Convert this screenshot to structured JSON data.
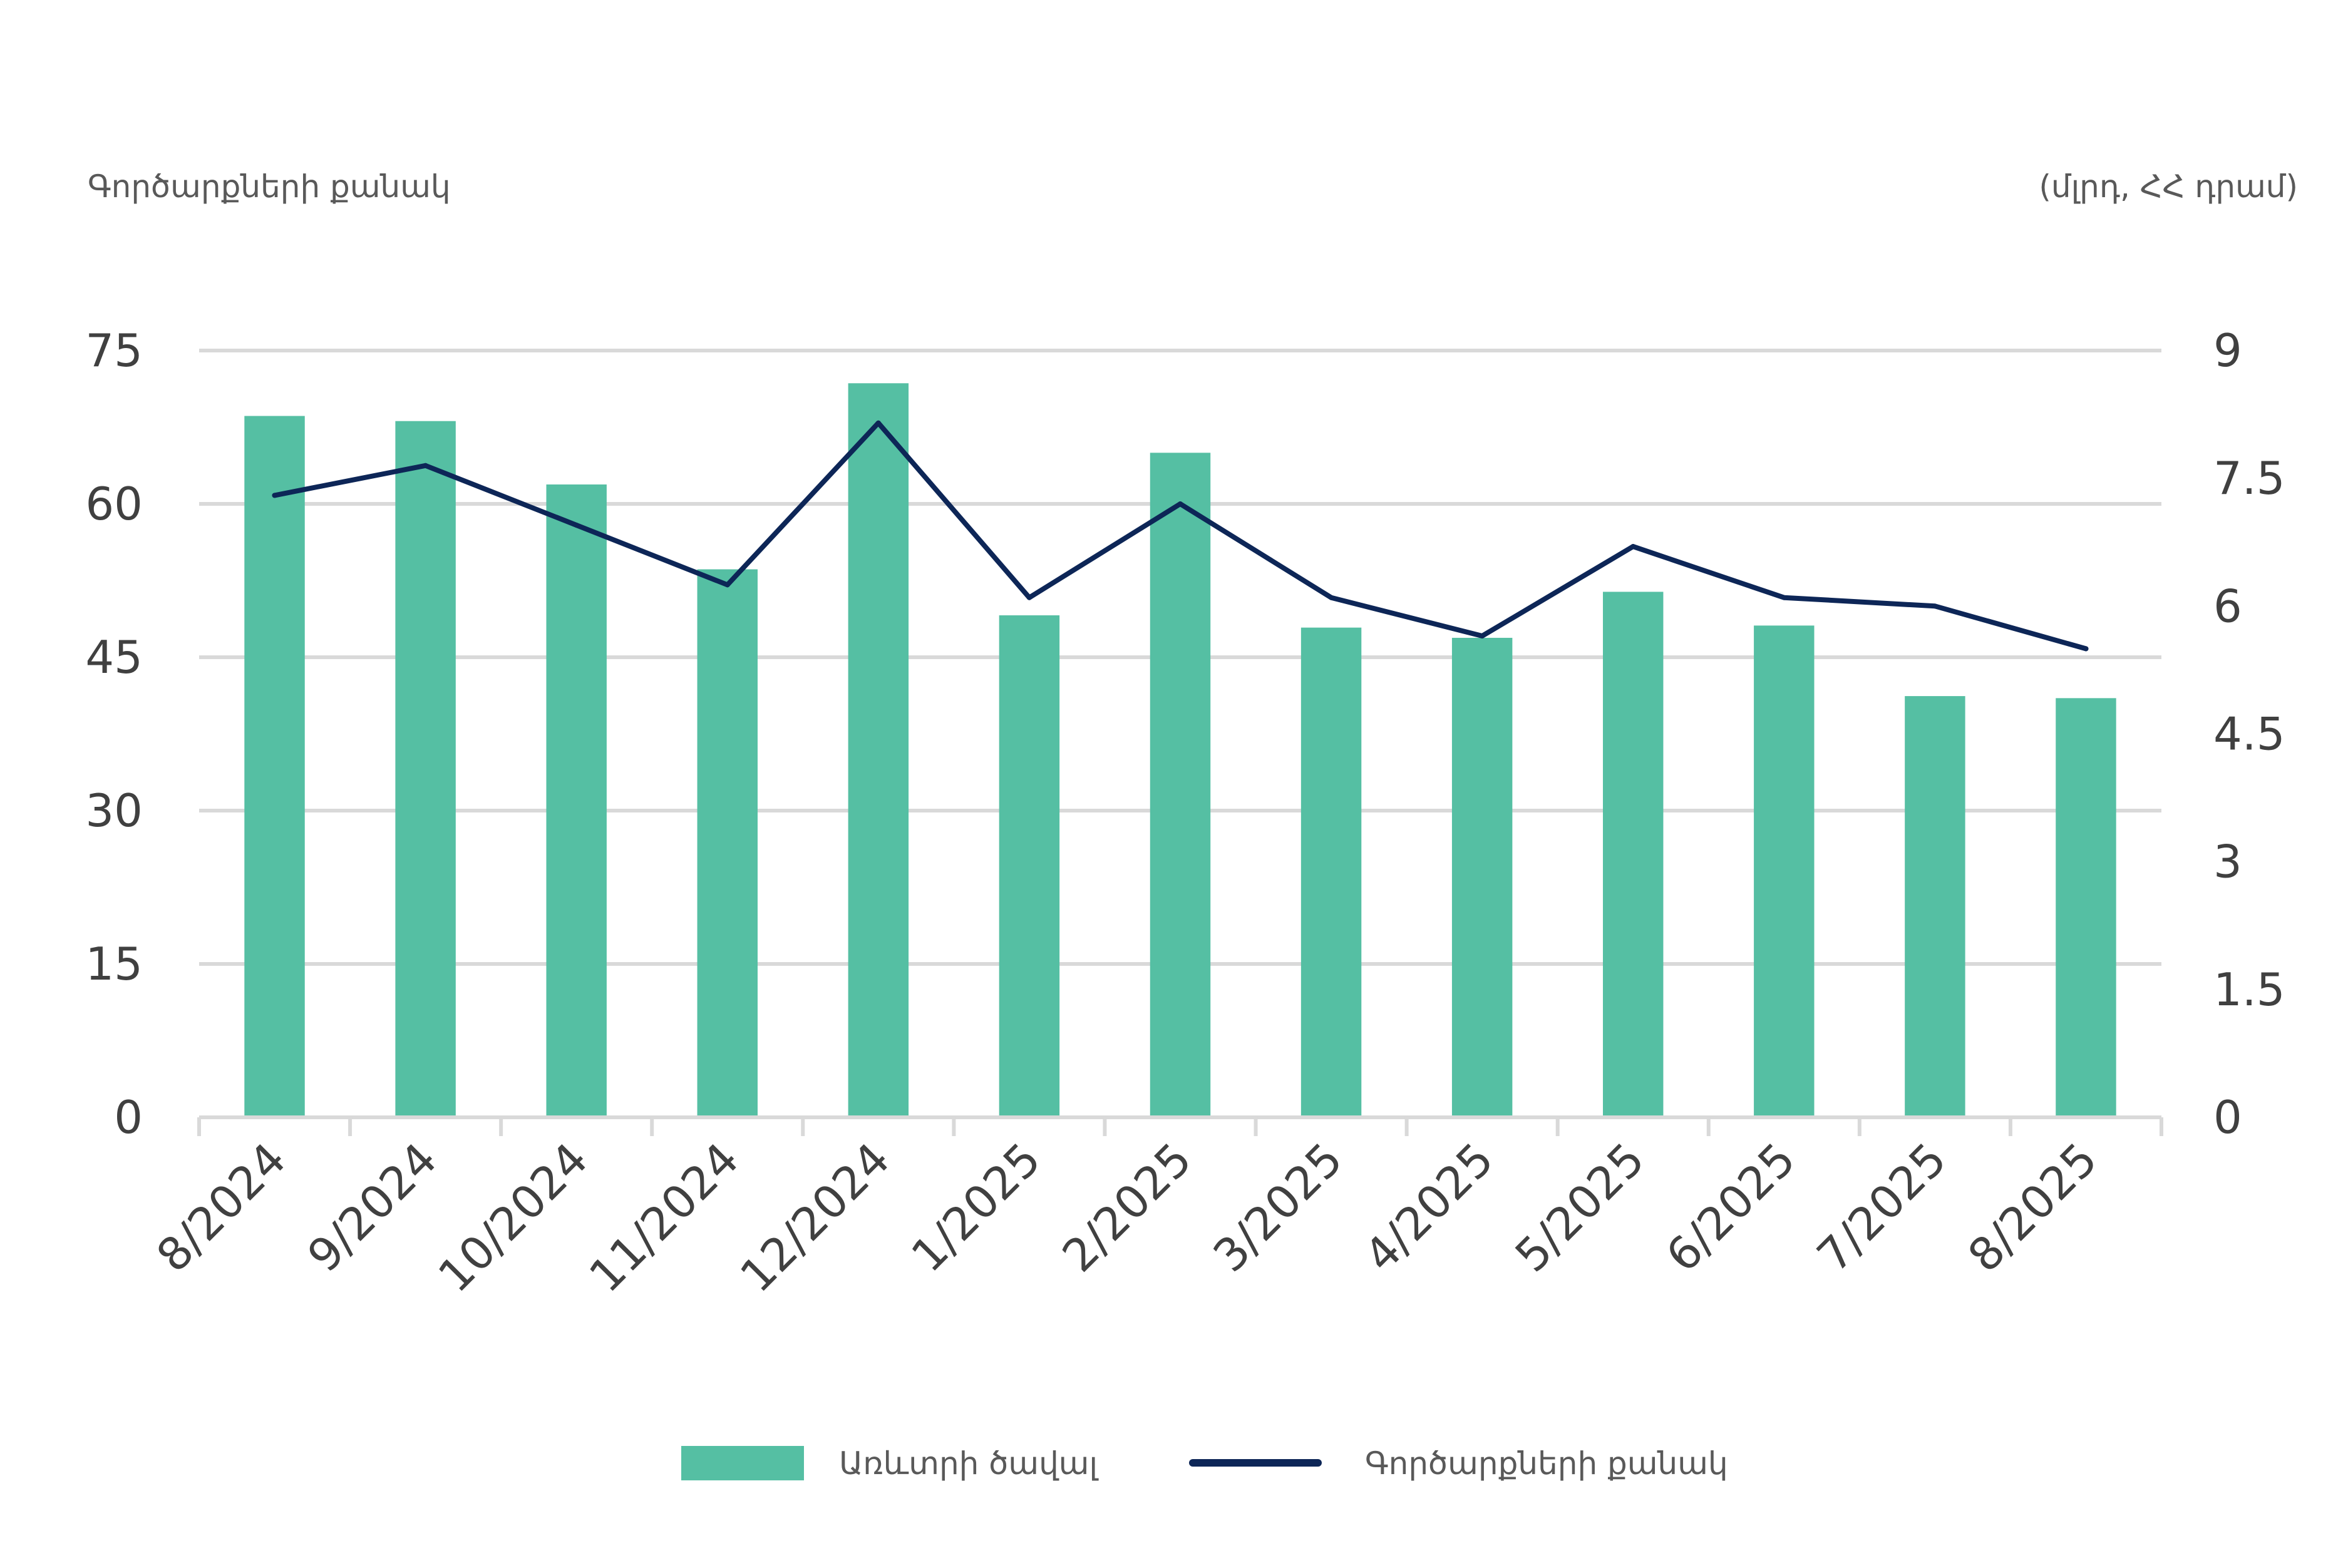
{
  "chart_data": {
    "type": "bar",
    "title": "",
    "categories": [
      "8/2024",
      "9/2024",
      "10/2024",
      "11/2024",
      "12/2024",
      "1/2025",
      "2/2025",
      "3/2025",
      "4/2025",
      "5/2025",
      "6/2025",
      "7/2025",
      "8/2025"
    ],
    "left_axis": {
      "label": "Գործարքների քանակ",
      "ylim": [
        0,
        75
      ],
      "ticks": [
        "0",
        "15",
        "30",
        "45",
        "60",
        "75"
      ]
    },
    "right_axis": {
      "label": "(մլրդ, ՀՀ դրամ)",
      "ylim": [
        0,
        9
      ],
      "ticks": [
        "0",
        "1.5",
        "3",
        "4.5",
        "6",
        "7.5",
        "9"
      ]
    },
    "series": [
      {
        "name": "Առևտրի ծավալ",
        "type": "bar",
        "axis": "left",
        "color": "#55BFA3",
        "values": [
          68.6,
          68.1,
          61.9,
          53.6,
          71.8,
          49.1,
          65.0,
          47.9,
          46.9,
          51.4,
          48.1,
          41.2,
          41.0
        ]
      },
      {
        "name": "Գործարքների քանակ",
        "type": "line",
        "axis": "right",
        "color": "#0D2657",
        "values": [
          7.3,
          7.65,
          6.95,
          6.25,
          8.15,
          6.1,
          7.2,
          6.1,
          5.65,
          6.7,
          6.1,
          6.0,
          5.5
        ]
      }
    ],
    "grid": true,
    "legend_position": "bottom-center"
  }
}
